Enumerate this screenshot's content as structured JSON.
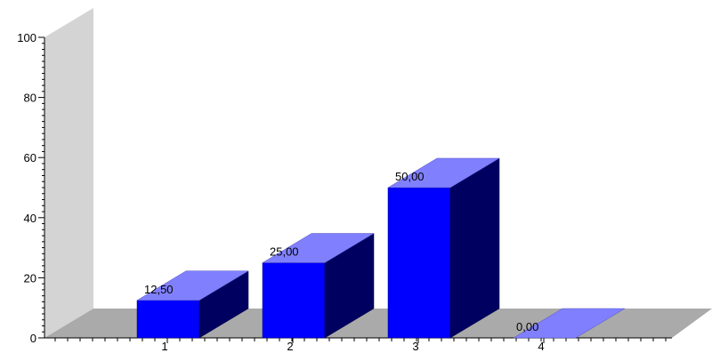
{
  "chart_data": {
    "type": "bar",
    "style": "3d",
    "title": "",
    "xlabel": "",
    "ylabel": "",
    "categories": [
      "1",
      "2",
      "3",
      "4"
    ],
    "values": [
      12.5,
      25,
      50,
      0
    ],
    "data_labels": [
      "12,50",
      "25,00",
      "50,00",
      "0,00"
    ],
    "ylim": [
      0,
      100
    ],
    "y_ticks": [
      "0",
      "20",
      "40",
      "60",
      "80",
      "100"
    ],
    "grid": false,
    "legend": "none",
    "colors": {
      "bar_front": "#0000ff",
      "bar_top": "#8080ff",
      "bar_side": "#000060",
      "back_wall": "#d4d4d4",
      "floor": "#aaaaaa",
      "axis": "#000000"
    }
  }
}
